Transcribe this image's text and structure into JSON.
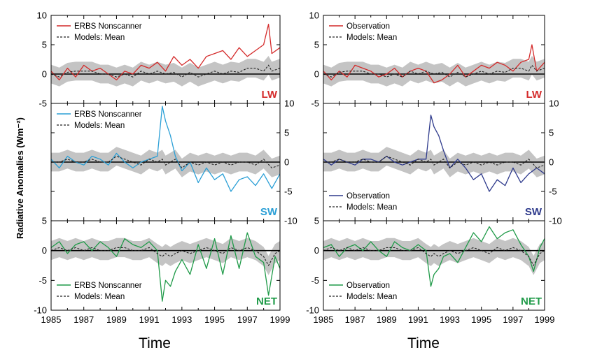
{
  "figure": {
    "y_axis_label": "Radiative Anomalies (Wm⁻²)",
    "x_axis_label": "Time"
  },
  "chart_data": [
    {
      "type": "line",
      "panel": "left-top",
      "label": "LW",
      "color": "#d42a2a",
      "legend": [
        "ERBS Nonscanner",
        "Models: Mean"
      ],
      "legend_position": "top-left",
      "ylim": [
        -5,
        10
      ],
      "yticks": [
        -5,
        0,
        5,
        10
      ],
      "ytick_side": "left",
      "xlim": [
        1985,
        1999
      ],
      "x": [
        1985.0,
        1985.5,
        1986.0,
        1986.5,
        1987.0,
        1987.5,
        1988.0,
        1988.5,
        1989.0,
        1989.5,
        1990.0,
        1990.5,
        1991.0,
        1991.5,
        1992.0,
        1992.5,
        1993.0,
        1993.5,
        1994.0,
        1994.5,
        1995.0,
        1995.5,
        1996.0,
        1996.5,
        1997.0,
        1997.5,
        1998.0,
        1998.3,
        1998.5,
        1999.0
      ],
      "series": [
        {
          "name": "ERBS Nonscanner",
          "values": [
            0.5,
            -1.0,
            1.0,
            -0.5,
            1.5,
            0.5,
            1.0,
            0.0,
            -1.0,
            0.5,
            0.0,
            1.5,
            1.0,
            2.0,
            0.5,
            3.0,
            1.5,
            2.5,
            1.0,
            3.0,
            3.5,
            4.0,
            2.5,
            4.5,
            3.0,
            4.0,
            5.0,
            8.5,
            3.5,
            4.5
          ]
        },
        {
          "name": "Models: Mean",
          "values": [
            0.0,
            -0.5,
            0.3,
            0.5,
            0.5,
            0.5,
            0.0,
            0.0,
            -0.5,
            0.0,
            -0.5,
            0.5,
            0.0,
            0.5,
            0.0,
            0.3,
            -0.5,
            0.3,
            -0.5,
            0.0,
            0.5,
            0.0,
            0.5,
            0.3,
            1.0,
            1.0,
            0.5,
            1.5,
            0.5,
            1.0
          ]
        }
      ]
    },
    {
      "type": "line",
      "panel": "left-middle",
      "label": "SW",
      "color": "#2a9fd6",
      "legend": [
        "ERBS Nonscanner",
        "Models: Mean"
      ],
      "legend_position": "top-left",
      "ylim": [
        -10,
        10
      ],
      "yticks": [
        -10,
        -5,
        0,
        5,
        10
      ],
      "ytick_side": "right",
      "xlim": [
        1985,
        1999
      ],
      "x": [
        1985.0,
        1985.5,
        1986.0,
        1986.5,
        1987.0,
        1987.5,
        1988.0,
        1988.5,
        1989.0,
        1989.5,
        1990.0,
        1990.5,
        1991.0,
        1991.5,
        1991.8,
        1992.0,
        1992.3,
        1992.6,
        1993.0,
        1993.5,
        1994.0,
        1994.5,
        1995.0,
        1995.5,
        1996.0,
        1996.5,
        1997.0,
        1997.5,
        1998.0,
        1998.5,
        1999.0
      ],
      "series": [
        {
          "name": "ERBS Nonscanner",
          "values": [
            0.5,
            -1.0,
            1.0,
            0.0,
            -0.5,
            1.0,
            0.5,
            -0.5,
            1.5,
            0.0,
            -1.0,
            0.0,
            0.5,
            1.0,
            9.5,
            7.0,
            4.5,
            1.0,
            -1.5,
            0.0,
            -3.5,
            -1.0,
            -3.0,
            -2.0,
            -5.0,
            -3.0,
            -2.5,
            -4.0,
            -2.0,
            -4.5,
            -2.0
          ]
        },
        {
          "name": "Models: Mean",
          "values": [
            0.0,
            0.0,
            0.5,
            0.0,
            0.0,
            0.5,
            0.0,
            0.0,
            1.0,
            0.5,
            0.0,
            -0.5,
            0.5,
            0.0,
            0.5,
            -0.5,
            0.0,
            0.5,
            -1.0,
            0.0,
            -0.5,
            0.0,
            -0.5,
            0.0,
            -0.5,
            0.0,
            0.0,
            -0.5,
            0.5,
            -1.0,
            -0.5
          ]
        }
      ]
    },
    {
      "type": "line",
      "panel": "left-bottom",
      "label": "NET",
      "color": "#1f9a48",
      "legend": [
        "ERBS Nonscanner",
        "Models: Mean"
      ],
      "legend_position": "bottom-left",
      "ylim": [
        -10,
        5
      ],
      "yticks": [
        -10,
        -5,
        0,
        5
      ],
      "ytick_side": "left",
      "xlim": [
        1985,
        1999
      ],
      "x": [
        1985.0,
        1985.5,
        1986.0,
        1986.5,
        1987.0,
        1987.5,
        1988.0,
        1988.5,
        1989.0,
        1989.5,
        1990.0,
        1990.5,
        1991.0,
        1991.5,
        1991.8,
        1992.0,
        1992.3,
        1992.6,
        1993.0,
        1993.5,
        1994.0,
        1994.5,
        1995.0,
        1995.5,
        1996.0,
        1996.5,
        1997.0,
        1997.5,
        1998.0,
        1998.3,
        1998.7,
        1999.0
      ],
      "series": [
        {
          "name": "ERBS Nonscanner",
          "values": [
            0.5,
            1.5,
            -0.5,
            1.0,
            1.5,
            0.0,
            1.5,
            0.5,
            -1.0,
            2.0,
            1.0,
            0.5,
            1.5,
            0.0,
            -8.5,
            -5.0,
            -6.0,
            -3.5,
            -1.5,
            -4.0,
            1.0,
            -3.0,
            2.0,
            -4.0,
            2.5,
            -3.0,
            3.0,
            -1.0,
            -2.0,
            -7.5,
            -1.0,
            -3.0
          ]
        },
        {
          "name": "Models: Mean",
          "values": [
            0.0,
            0.5,
            0.0,
            0.5,
            0.0,
            0.5,
            0.0,
            0.0,
            0.5,
            0.5,
            0.0,
            0.0,
            0.5,
            -0.5,
            -1.0,
            -0.5,
            -1.0,
            -0.5,
            0.0,
            -0.5,
            0.0,
            0.5,
            0.0,
            -0.5,
            0.5,
            0.0,
            0.5,
            0.0,
            -1.0,
            -2.5,
            -0.5,
            0.0
          ]
        }
      ]
    },
    {
      "type": "line",
      "panel": "right-top",
      "label": "LW",
      "color": "#d42a2a",
      "legend": [
        "Observation",
        "Models: Mean"
      ],
      "legend_position": "top-left",
      "ylim": [
        -5,
        10
      ],
      "yticks": [
        -5,
        0,
        5,
        10
      ],
      "ytick_side": "left",
      "xlim": [
        1985,
        1999
      ],
      "x": [
        1985.0,
        1985.5,
        1986.0,
        1986.5,
        1987.0,
        1987.5,
        1988.0,
        1988.5,
        1989.0,
        1989.5,
        1990.0,
        1990.5,
        1991.0,
        1991.5,
        1992.0,
        1992.5,
        1993.0,
        1993.5,
        1994.0,
        1994.5,
        1995.0,
        1995.5,
        1996.0,
        1996.5,
        1997.0,
        1997.5,
        1998.0,
        1998.2,
        1998.5,
        1999.0
      ],
      "series": [
        {
          "name": "Observation",
          "values": [
            0.5,
            -1.0,
            0.5,
            -0.5,
            1.5,
            1.0,
            0.5,
            -0.5,
            0.0,
            1.0,
            -0.5,
            0.5,
            1.0,
            0.5,
            -1.5,
            -1.0,
            0.0,
            1.5,
            -0.5,
            0.5,
            1.5,
            1.0,
            2.0,
            1.5,
            0.5,
            2.0,
            2.5,
            5.0,
            0.5,
            2.0
          ]
        },
        {
          "name": "Models: Mean",
          "values": [
            0.0,
            -0.5,
            0.3,
            0.5,
            0.5,
            0.5,
            0.0,
            0.0,
            -0.5,
            0.0,
            -0.5,
            0.5,
            0.0,
            0.5,
            0.0,
            0.3,
            -0.5,
            0.3,
            -0.5,
            0.0,
            0.5,
            0.0,
            0.5,
            0.3,
            1.0,
            1.0,
            0.5,
            1.5,
            0.5,
            1.0
          ]
        }
      ]
    },
    {
      "type": "line",
      "panel": "right-middle",
      "label": "SW",
      "color": "#2e3a8c",
      "legend": [
        "Observation",
        "Models: Mean"
      ],
      "legend_position": "bottom-left",
      "ylim": [
        -10,
        10
      ],
      "yticks": [
        -10,
        -5,
        0,
        5,
        10
      ],
      "ytick_side": "right",
      "xlim": [
        1985,
        1999
      ],
      "x": [
        1985.0,
        1985.5,
        1986.0,
        1986.5,
        1987.0,
        1987.5,
        1988.0,
        1988.5,
        1989.0,
        1989.5,
        1990.0,
        1990.5,
        1991.0,
        1991.5,
        1991.8,
        1992.0,
        1992.3,
        1992.6,
        1993.0,
        1993.5,
        1994.0,
        1994.5,
        1995.0,
        1995.5,
        1996.0,
        1996.5,
        1997.0,
        1997.5,
        1998.0,
        1998.5,
        1999.0
      ],
      "series": [
        {
          "name": "Observation",
          "values": [
            0.5,
            -0.5,
            0.5,
            0.0,
            -0.5,
            0.5,
            0.5,
            0.0,
            1.0,
            0.0,
            -0.5,
            0.0,
            0.5,
            0.5,
            8.0,
            6.0,
            4.5,
            2.0,
            -1.0,
            0.5,
            -1.0,
            -3.0,
            -2.0,
            -5.0,
            -3.0,
            -4.0,
            -1.0,
            -3.5,
            -2.0,
            -1.0,
            -2.0
          ]
        },
        {
          "name": "Models: Mean",
          "values": [
            0.0,
            0.0,
            0.5,
            0.0,
            0.0,
            0.5,
            0.0,
            0.0,
            1.0,
            0.5,
            0.0,
            -0.5,
            0.5,
            0.0,
            0.5,
            -0.5,
            0.0,
            0.5,
            -1.0,
            0.0,
            -0.5,
            0.0,
            -0.5,
            0.0,
            -0.5,
            0.0,
            0.0,
            -0.5,
            0.5,
            -1.0,
            -0.5
          ]
        }
      ]
    },
    {
      "type": "line",
      "panel": "right-bottom",
      "label": "NET",
      "color": "#1f9a48",
      "legend": [
        "Observation",
        "Models: Mean"
      ],
      "legend_position": "bottom-left",
      "ylim": [
        -10,
        5
      ],
      "yticks": [
        -10,
        -5,
        0,
        5
      ],
      "ytick_side": "left",
      "xlim": [
        1985,
        1999
      ],
      "x": [
        1985.0,
        1985.5,
        1986.0,
        1986.5,
        1987.0,
        1987.5,
        1988.0,
        1988.5,
        1989.0,
        1989.5,
        1990.0,
        1990.5,
        1991.0,
        1991.5,
        1991.8,
        1992.0,
        1992.3,
        1992.6,
        1993.0,
        1993.5,
        1994.0,
        1994.5,
        1995.0,
        1995.5,
        1996.0,
        1996.5,
        1997.0,
        1997.5,
        1998.0,
        1998.3,
        1998.7,
        1999.0
      ],
      "series": [
        {
          "name": "Observation",
          "values": [
            0.5,
            1.0,
            -1.0,
            0.5,
            1.0,
            0.0,
            1.5,
            0.0,
            -1.0,
            1.5,
            0.5,
            0.0,
            1.0,
            0.0,
            -6.0,
            -4.0,
            -3.0,
            -1.0,
            -0.5,
            -2.0,
            0.5,
            3.0,
            1.5,
            4.0,
            2.0,
            3.0,
            3.5,
            1.0,
            -1.0,
            -3.5,
            0.5,
            2.0
          ]
        },
        {
          "name": "Models: Mean",
          "values": [
            0.0,
            0.5,
            0.0,
            0.5,
            0.0,
            0.5,
            0.0,
            0.0,
            0.5,
            0.5,
            0.0,
            0.0,
            0.5,
            -0.5,
            -1.0,
            -0.5,
            -1.0,
            -0.5,
            0.0,
            -0.5,
            0.0,
            0.5,
            0.0,
            -0.5,
            0.5,
            0.0,
            0.5,
            0.0,
            -1.0,
            -2.5,
            -0.5,
            0.0
          ]
        }
      ]
    }
  ],
  "x_ticks": [
    "1985",
    "1987",
    "1989",
    "1991",
    "1993",
    "1995",
    "1997",
    "1999"
  ]
}
